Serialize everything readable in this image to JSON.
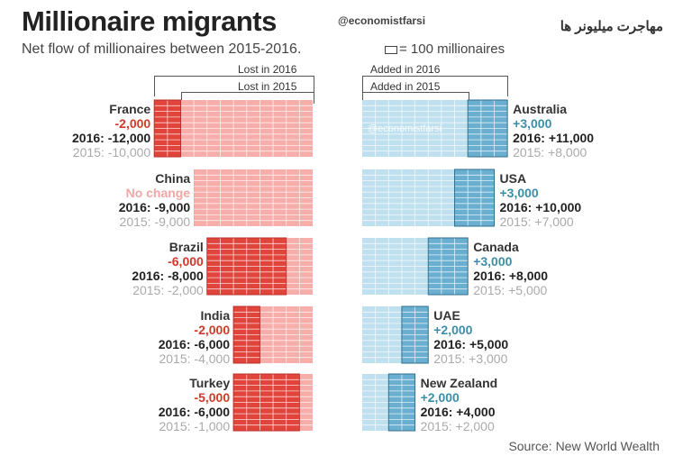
{
  "header": {
    "title": "Millionaire migrants",
    "handle": "@economistfarsi",
    "persian_title": "مهاجرت میلیونر ها",
    "subtitle": "Net flow of millionaires between 2015-2016.",
    "legend_unit": "= 100 millionaires"
  },
  "brackets": {
    "lost_2016": "Lost in 2016",
    "lost_2015": "Lost in 2015",
    "added_2016": "Added in 2016",
    "added_2015": "Added in 2015"
  },
  "watermark": "@economistfarsi",
  "source": "Source: New World Wealth",
  "colors": {
    "lost_dark": "#e0443a",
    "lost_light": "#f7aeaa",
    "added_dark": "#6aafd0",
    "added_light": "#bfe0ee",
    "neg_text": "#d0392b",
    "pos_text": "#3a8fa8"
  },
  "chart_data": {
    "type": "bar",
    "unit_per_cell": 100,
    "left_panel": {
      "label": "Lost",
      "countries": [
        {
          "name": "France",
          "change": "-2,000",
          "y2016": "2016: -12,000",
          "y2015": "2015: -10,000",
          "v2016": -12000,
          "v2015": -10000
        },
        {
          "name": "China",
          "change": "No change",
          "y2016": "2016: -9,000",
          "y2015": "2015: -9,000",
          "v2016": -9000,
          "v2015": -9000
        },
        {
          "name": "Brazil",
          "change": "-6,000",
          "y2016": "2016: -8,000",
          "y2015": "2015: -2,000",
          "v2016": -8000,
          "v2015": -2000
        },
        {
          "name": "India",
          "change": "-2,000",
          "y2016": "2016: -6,000",
          "y2015": "2015: -4,000",
          "v2016": -6000,
          "v2015": -4000
        },
        {
          "name": "Turkey",
          "change": "-5,000",
          "y2016": "2016: -6,000",
          "y2015": "2015: -1,000",
          "v2016": -6000,
          "v2015": -1000
        }
      ]
    },
    "right_panel": {
      "label": "Added",
      "countries": [
        {
          "name": "Australia",
          "change": "+3,000",
          "y2016": "2016: +11,000",
          "y2015": "2015: +8,000",
          "v2016": 11000,
          "v2015": 8000
        },
        {
          "name": "USA",
          "change": "+3,000",
          "y2016": "2016: +10,000",
          "y2015": "2015: +7,000",
          "v2016": 10000,
          "v2015": 7000
        },
        {
          "name": "Canada",
          "change": "+3,000",
          "y2016": "2016: +8,000",
          "y2015": "2015: +5,000",
          "v2016": 8000,
          "v2015": 5000
        },
        {
          "name": "UAE",
          "change": "+2,000",
          "y2016": "2016: +5,000",
          "y2015": "2015: +3,000",
          "v2016": 5000,
          "v2015": 3000
        },
        {
          "name": "New Zealand",
          "change": "+2,000",
          "y2016": "2016: +4,000",
          "y2015": "2015: +2,000",
          "v2016": 4000,
          "v2015": 2000
        }
      ]
    }
  }
}
